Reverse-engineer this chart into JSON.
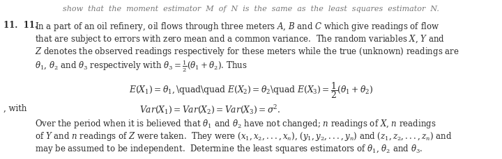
{
  "bg_color": "#ffffff",
  "text_color": "#2a2a2a",
  "figsize": [
    7.2,
    2.3
  ],
  "dpi": 100,
  "fs_main": 8.5,
  "fs_eq": 8.8,
  "top_line_color": "#777777",
  "top_line": "show  that  the  moment  estimator  M  of  N  is  the  same  as  the  least  squares  estimator  N.",
  "num1": "11.",
  "num2": "11.",
  "p1l1": "In a part of an oil refinery, oil flows through three meters $A$, $B$ and $C$ which give readings of flow",
  "p1l2": "that are subject to errors with zero mean and a common variance.  The random variables $X$, $Y$ and",
  "p1l3": "$Z$ denotes the observed readings respectively for these meters while the true (unknown) readings are",
  "p1l4": "$\\theta_1$, $\\theta_2$ and $\\theta_3$ respectively with $\\theta_3 = \\frac{1}{2}(\\theta_1 + \\theta_2)$. Thus",
  "eq": "$E(X_1) = \\theta_1,$\\quad\\quad $E(X_2) = \\theta_2$\\quad $E(X_3) = \\dfrac{1}{2}(\\theta_1 + \\theta_2)$",
  "with_label": ", with",
  "var_eq": "$Var(X_1) = Var(X_2) = Var(X_3) = \\sigma^2$.",
  "p2l1": "Over the period when it is believed that $\\theta_1$ and $\\theta_2$ have not changed; $n$ readings of $X$, $n$ readings",
  "p2l2": "of $Y$ and $n$ readings of $Z$ were taken.  They were $(x_1, x_2, ..., x_n)$, $(y_1, y_2, ..., y_n)$ and $(z_1, z_2, ..., z_n)$ and",
  "p2l3": "may be assumed to be independent.  Determine the least squares estimators of $\\theta_1$, $\\theta_2$ and $\\theta_3$."
}
